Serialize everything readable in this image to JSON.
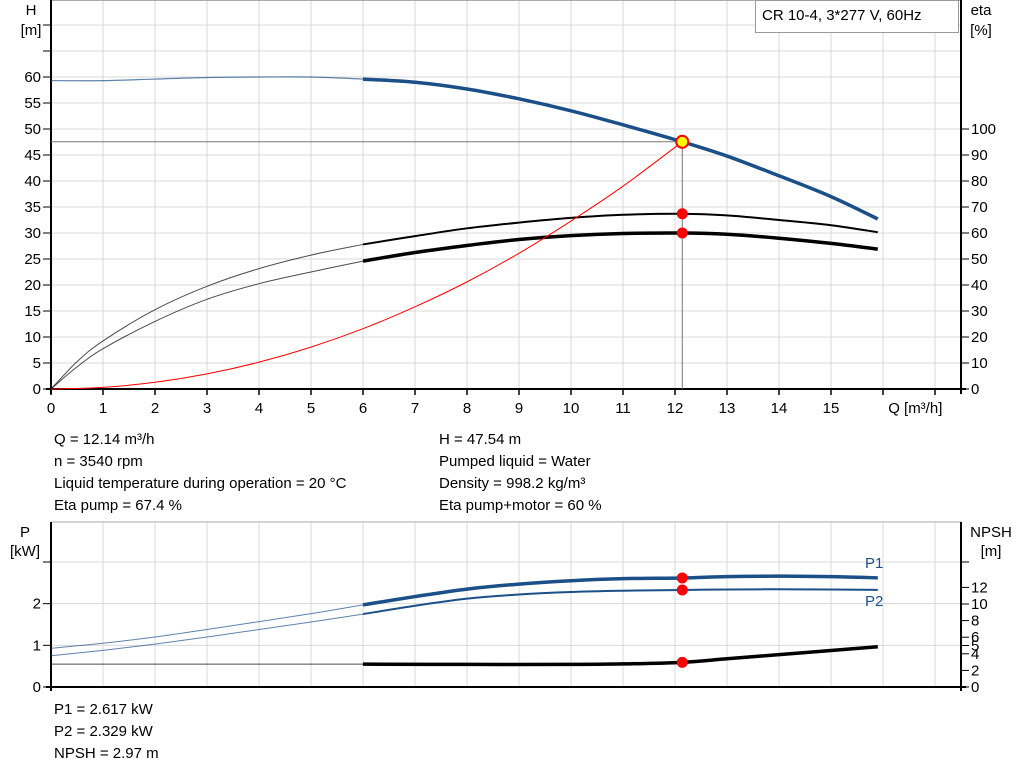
{
  "chart_data": [
    {
      "type": "line",
      "title": "CR 10-4, 3*277 V, 60Hz",
      "xlabel": "Q [m³/h]",
      "ylabel": "H\n[m]",
      "y2label": "eta\n[%]",
      "xlim": [
        0,
        17.5
      ],
      "ylim": [
        0,
        70
      ],
      "y2lim": [
        0,
        140
      ],
      "grid": true,
      "xticks": [
        0,
        1,
        2,
        3,
        4,
        5,
        6,
        7,
        8,
        9,
        10,
        11,
        12,
        13,
        14,
        15
      ],
      "yticks": [
        0,
        5,
        10,
        15,
        20,
        25,
        30,
        35,
        40,
        45,
        50,
        55,
        60
      ],
      "y2ticks": [
        0,
        10,
        20,
        30,
        40,
        50,
        60,
        70,
        80,
        90,
        100
      ],
      "series": [
        {
          "key": "H",
          "axis": "left",
          "color": "#1b4f87",
          "x": [
            0,
            1,
            2,
            3,
            4,
            5,
            6,
            7,
            8,
            9,
            10,
            11,
            12.14,
            13,
            14,
            15,
            15.9
          ],
          "y": [
            59.3,
            59.3,
            59.6,
            59.9,
            60,
            60,
            59.6,
            59,
            57.7,
            55.8,
            53.5,
            50.8,
            47.54,
            44.8,
            41,
            37,
            32.7
          ]
        },
        {
          "key": "eta_pump",
          "axis": "right",
          "color": "#000000",
          "x": [
            0,
            0.5,
            1,
            2,
            3,
            4,
            5,
            6,
            7,
            8,
            9,
            10,
            11,
            12.14,
            13,
            14,
            15,
            15.9
          ],
          "y": [
            0,
            10.5,
            18.5,
            30.5,
            39.5,
            46.3,
            51.5,
            55.6,
            58.8,
            61.8,
            64,
            65.8,
            67,
            67.4,
            66.8,
            65,
            63,
            60.3
          ]
        },
        {
          "key": "eta_pump_motor",
          "axis": "right",
          "color": "#000000",
          "x": [
            0,
            0.5,
            1,
            2,
            3,
            4,
            5,
            6,
            7,
            8,
            9,
            10,
            11,
            12.14,
            13,
            14,
            15,
            15.9
          ],
          "y": [
            0,
            8.5,
            15.5,
            26,
            34.5,
            40.5,
            45,
            49.2,
            52.5,
            55.2,
            57.5,
            59,
            59.8,
            60,
            59.5,
            58,
            56,
            53.8
          ]
        },
        {
          "key": "system",
          "axis": "left",
          "color": "#ff0000",
          "x": [
            0,
            1,
            2,
            3,
            4,
            5,
            6,
            7,
            8,
            9,
            10,
            11,
            12.14
          ],
          "y": [
            0,
            0.32,
            1.29,
            2.9,
            5.16,
            8.06,
            11.6,
            15.8,
            20.6,
            26.1,
            32.3,
            39.0,
            47.54
          ]
        }
      ],
      "operating_point": {
        "x": 12.14,
        "y": 47.54,
        "eta_pump": 67.4,
        "eta_pump_motor": 60
      }
    },
    {
      "type": "line",
      "ylabel": "P\n[kW]",
      "y2label": "NPSH\n[m]",
      "xlim": [
        0,
        17.5
      ],
      "ylim": [
        0,
        4
      ],
      "y2lim": [
        0,
        20
      ],
      "grid": true,
      "yticks": [
        0,
        1,
        2
      ],
      "y2ticks": [
        0,
        2,
        4,
        5,
        6,
        8,
        10,
        12
      ],
      "series": [
        {
          "key": "P1",
          "name": "P1",
          "axis": "left",
          "color": "#1b4f87",
          "x": [
            0,
            1,
            2,
            3,
            4,
            5,
            6,
            7,
            8,
            9,
            10,
            11,
            12.14,
            13,
            14,
            15,
            15.9
          ],
          "y": [
            0.93,
            1.05,
            1.2,
            1.38,
            1.57,
            1.76,
            1.97,
            2.17,
            2.35,
            2.47,
            2.55,
            2.6,
            2.617,
            2.65,
            2.66,
            2.65,
            2.62
          ]
        },
        {
          "key": "P2",
          "name": "P2",
          "axis": "left",
          "color": "#1b4f87",
          "x": [
            0,
            1,
            2,
            3,
            4,
            5,
            6,
            7,
            8,
            9,
            10,
            11,
            12.14,
            13,
            14,
            15,
            15.9
          ],
          "y": [
            0.75,
            0.88,
            1.03,
            1.2,
            1.38,
            1.56,
            1.75,
            1.95,
            2.12,
            2.22,
            2.28,
            2.31,
            2.329,
            2.34,
            2.345,
            2.34,
            2.33
          ]
        },
        {
          "key": "NPSH",
          "axis": "right",
          "color": "#000000",
          "x": [
            0,
            3,
            6,
            8,
            10,
            11,
            12.14,
            13,
            14,
            15,
            15.9
          ],
          "y": [
            2.75,
            2.75,
            2.75,
            2.72,
            2.72,
            2.78,
            2.97,
            3.4,
            3.9,
            4.4,
            4.85
          ]
        }
      ],
      "operating_point": {
        "x": 12.14,
        "P1": 2.617,
        "P2": 2.329,
        "NPSH": 2.97
      }
    }
  ],
  "info_left": [
    "Q = 12.14 m³/h",
    "n = 3540 rpm",
    "Liquid temperature during operation = 20 °C",
    "Eta pump = 67.4 %"
  ],
  "info_right": [
    "H = 47.54 m",
    "Pumped liquid = Water",
    "Density = 998.2 kg/m³",
    "Eta pump+motor = 60 %"
  ],
  "info_bottom": [
    "P1 = 2.617 kW",
    "P2 = 2.329 kW",
    "NPSH = 2.97 m"
  ]
}
